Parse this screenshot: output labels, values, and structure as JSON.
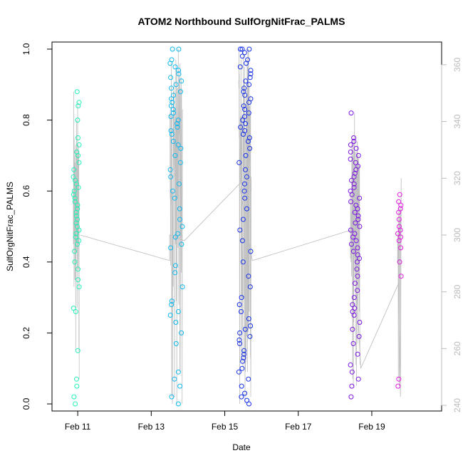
{
  "chart_data": {
    "type": "scatter",
    "title": "ATOM2 Northbound SulfOrgNitFrac_PALMS",
    "xlabel": "Date",
    "ylabel": "SulfOrgNitFrac_PALMS",
    "xlim": [
      10.3,
      20.9
    ],
    "ylim": [
      -0.02,
      1.02
    ],
    "y2lim": [
      238,
      368
    ],
    "x_ticks": [
      {
        "value": 11,
        "label": "Feb 11"
      },
      {
        "value": 13,
        "label": "Feb 13"
      },
      {
        "value": 15,
        "label": "Feb 15"
      },
      {
        "value": 17,
        "label": "Feb 17"
      },
      {
        "value": 19,
        "label": "Feb 19"
      }
    ],
    "y_ticks": [
      "0.0",
      "0.2",
      "0.4",
      "0.6",
      "0.8",
      "1.0"
    ],
    "y2_ticks": [
      "240",
      "260",
      "280",
      "300",
      "320",
      "340",
      "360"
    ],
    "grid": false,
    "colors": {
      "points": [
        "#22f0b8",
        "#0fb8f0",
        "#1630e8",
        "#7a14e0",
        "#e01ae0"
      ],
      "trace": "#c0c0c0",
      "y2_axis": "#bcbcbc",
      "axis": "#000000"
    },
    "flights": [
      {
        "xc": 10.96,
        "xw": 0.16,
        "vals": [
          0.0,
          0.02,
          0.05,
          0.07,
          0.15,
          0.26,
          0.27,
          0.33,
          0.35,
          0.38,
          0.4,
          0.43,
          0.45,
          0.46,
          0.47,
          0.48,
          0.49,
          0.5,
          0.51,
          0.52,
          0.53,
          0.54,
          0.55,
          0.56,
          0.57,
          0.58,
          0.59,
          0.6,
          0.61,
          0.62,
          0.63,
          0.64,
          0.66,
          0.68,
          0.7,
          0.71,
          0.73,
          0.75,
          0.8,
          0.84,
          0.85,
          0.88
        ]
      },
      {
        "xc": 13.68,
        "xw": 0.34,
        "vals": [
          0.0,
          0.02,
          0.05,
          0.07,
          0.09,
          0.17,
          0.2,
          0.23,
          0.25,
          0.26,
          0.28,
          0.29,
          0.33,
          0.37,
          0.39,
          0.44,
          0.45,
          0.47,
          0.48,
          0.5,
          0.52,
          0.55,
          0.58,
          0.6,
          0.62,
          0.64,
          0.66,
          0.68,
          0.7,
          0.72,
          0.73,
          0.74,
          0.76,
          0.77,
          0.78,
          0.79,
          0.8,
          0.81,
          0.82,
          0.83,
          0.84,
          0.85,
          0.86,
          0.87,
          0.88,
          0.89,
          0.9,
          0.91,
          0.92,
          0.93,
          0.94,
          0.95,
          0.96,
          0.97,
          1.0,
          1.0
        ]
      },
      {
        "xc": 15.55,
        "xw": 0.34,
        "vals": [
          0.0,
          0.01,
          0.02,
          0.03,
          0.05,
          0.07,
          0.09,
          0.1,
          0.12,
          0.13,
          0.14,
          0.15,
          0.17,
          0.18,
          0.19,
          0.2,
          0.21,
          0.22,
          0.24,
          0.26,
          0.28,
          0.3,
          0.33,
          0.36,
          0.4,
          0.43,
          0.46,
          0.49,
          0.52,
          0.55,
          0.58,
          0.6,
          0.62,
          0.64,
          0.66,
          0.68,
          0.7,
          0.72,
          0.74,
          0.75,
          0.76,
          0.77,
          0.78,
          0.79,
          0.8,
          0.81,
          0.82,
          0.83,
          0.84,
          0.85,
          0.86,
          0.87,
          0.88,
          0.89,
          0.9,
          0.91,
          0.92,
          0.93,
          0.94,
          0.95,
          0.96,
          0.97,
          0.98,
          0.99,
          1.0,
          1.0,
          1.0
        ]
      },
      {
        "xc": 18.55,
        "xw": 0.26,
        "vals": [
          0.02,
          0.05,
          0.07,
          0.09,
          0.11,
          0.14,
          0.17,
          0.19,
          0.21,
          0.23,
          0.25,
          0.26,
          0.27,
          0.28,
          0.3,
          0.32,
          0.34,
          0.36,
          0.38,
          0.4,
          0.41,
          0.42,
          0.43,
          0.44,
          0.45,
          0.46,
          0.47,
          0.48,
          0.49,
          0.5,
          0.51,
          0.52,
          0.53,
          0.54,
          0.55,
          0.56,
          0.57,
          0.58,
          0.59,
          0.6,
          0.61,
          0.62,
          0.63,
          0.64,
          0.65,
          0.66,
          0.67,
          0.68,
          0.69,
          0.7,
          0.71,
          0.72,
          0.73,
          0.74,
          0.75,
          0.82
        ]
      },
      {
        "xc": 19.75,
        "xw": 0.1,
        "vals": [
          0.05,
          0.07,
          0.36,
          0.4,
          0.44,
          0.46,
          0.47,
          0.48,
          0.49,
          0.5,
          0.52,
          0.54,
          0.55,
          0.56,
          0.57,
          0.59
        ]
      }
    ],
    "trace_anchors": [
      {
        "x": 11.07,
        "y2": 300
      },
      {
        "x": 13.5,
        "y2": 291
      },
      {
        "x": 13.5,
        "y2": 300
      },
      {
        "x": 13.9,
        "y2": 298
      },
      {
        "x": 15.4,
        "y2": 318
      },
      {
        "x": 15.75,
        "y2": 291
      },
      {
        "x": 18.5,
        "y2": 302
      },
      {
        "x": 18.7,
        "y2": 253
      },
      {
        "x": 19.73,
        "y2": 283
      },
      {
        "x": 19.78,
        "y2": 243
      },
      {
        "x": 19.8,
        "y2": 320
      }
    ]
  }
}
